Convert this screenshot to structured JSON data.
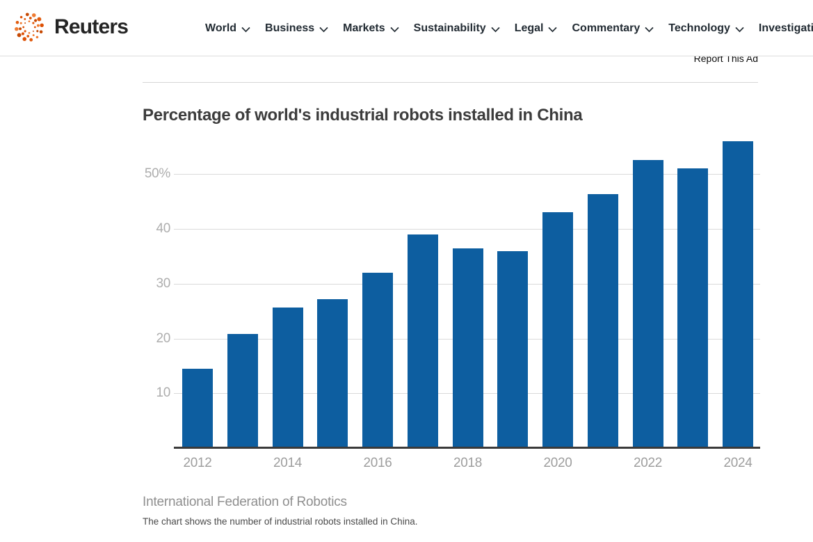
{
  "header": {
    "brand": "Reuters",
    "nav_items": [
      {
        "label": "World",
        "has_dropdown": true
      },
      {
        "label": "Business",
        "has_dropdown": true
      },
      {
        "label": "Markets",
        "has_dropdown": true
      },
      {
        "label": "Sustainability",
        "has_dropdown": true
      },
      {
        "label": "Legal",
        "has_dropdown": true
      },
      {
        "label": "Commentary",
        "has_dropdown": true
      },
      {
        "label": "Technology",
        "has_dropdown": true
      },
      {
        "label": "Investigations",
        "has_dropdown": false
      }
    ]
  },
  "ad": {
    "report_label": "Report This Ad"
  },
  "article": {
    "title": "Percentage of world's industrial robots installed in China",
    "source": "International Federation of Robotics",
    "caption": "The chart shows the number of industrial robots installed in China."
  },
  "chart_data": {
    "type": "bar",
    "title": "Percentage of world's industrial robots installed in China",
    "categories": [
      "2012",
      "2013",
      "2014",
      "2015",
      "2016",
      "2017",
      "2018",
      "2019",
      "2020",
      "2021",
      "2022",
      "2023",
      "2024"
    ],
    "values": [
      14.5,
      20.8,
      25.6,
      27.2,
      32,
      39,
      36.4,
      36,
      43,
      46.4,
      52.6,
      51,
      56
    ],
    "x_tick_labels": [
      "2012",
      "2014",
      "2016",
      "2018",
      "2020",
      "2022",
      "2024"
    ],
    "y_ticks": [
      10,
      20,
      30,
      40,
      50
    ],
    "y_tick_labels": [
      "10",
      "20",
      "30",
      "40",
      "50%"
    ],
    "ylim": [
      0,
      58
    ],
    "grid": true,
    "legend": null,
    "bar_color": "#0d5ea0",
    "gridline_color": "#dadada",
    "axis_color": "#3a3a3a",
    "source": "International Federation of Robotics"
  },
  "colors": {
    "logo_orange": "#dd5105",
    "nav_text": "#222b33",
    "tick_label_gray": "#9e9e9e"
  }
}
